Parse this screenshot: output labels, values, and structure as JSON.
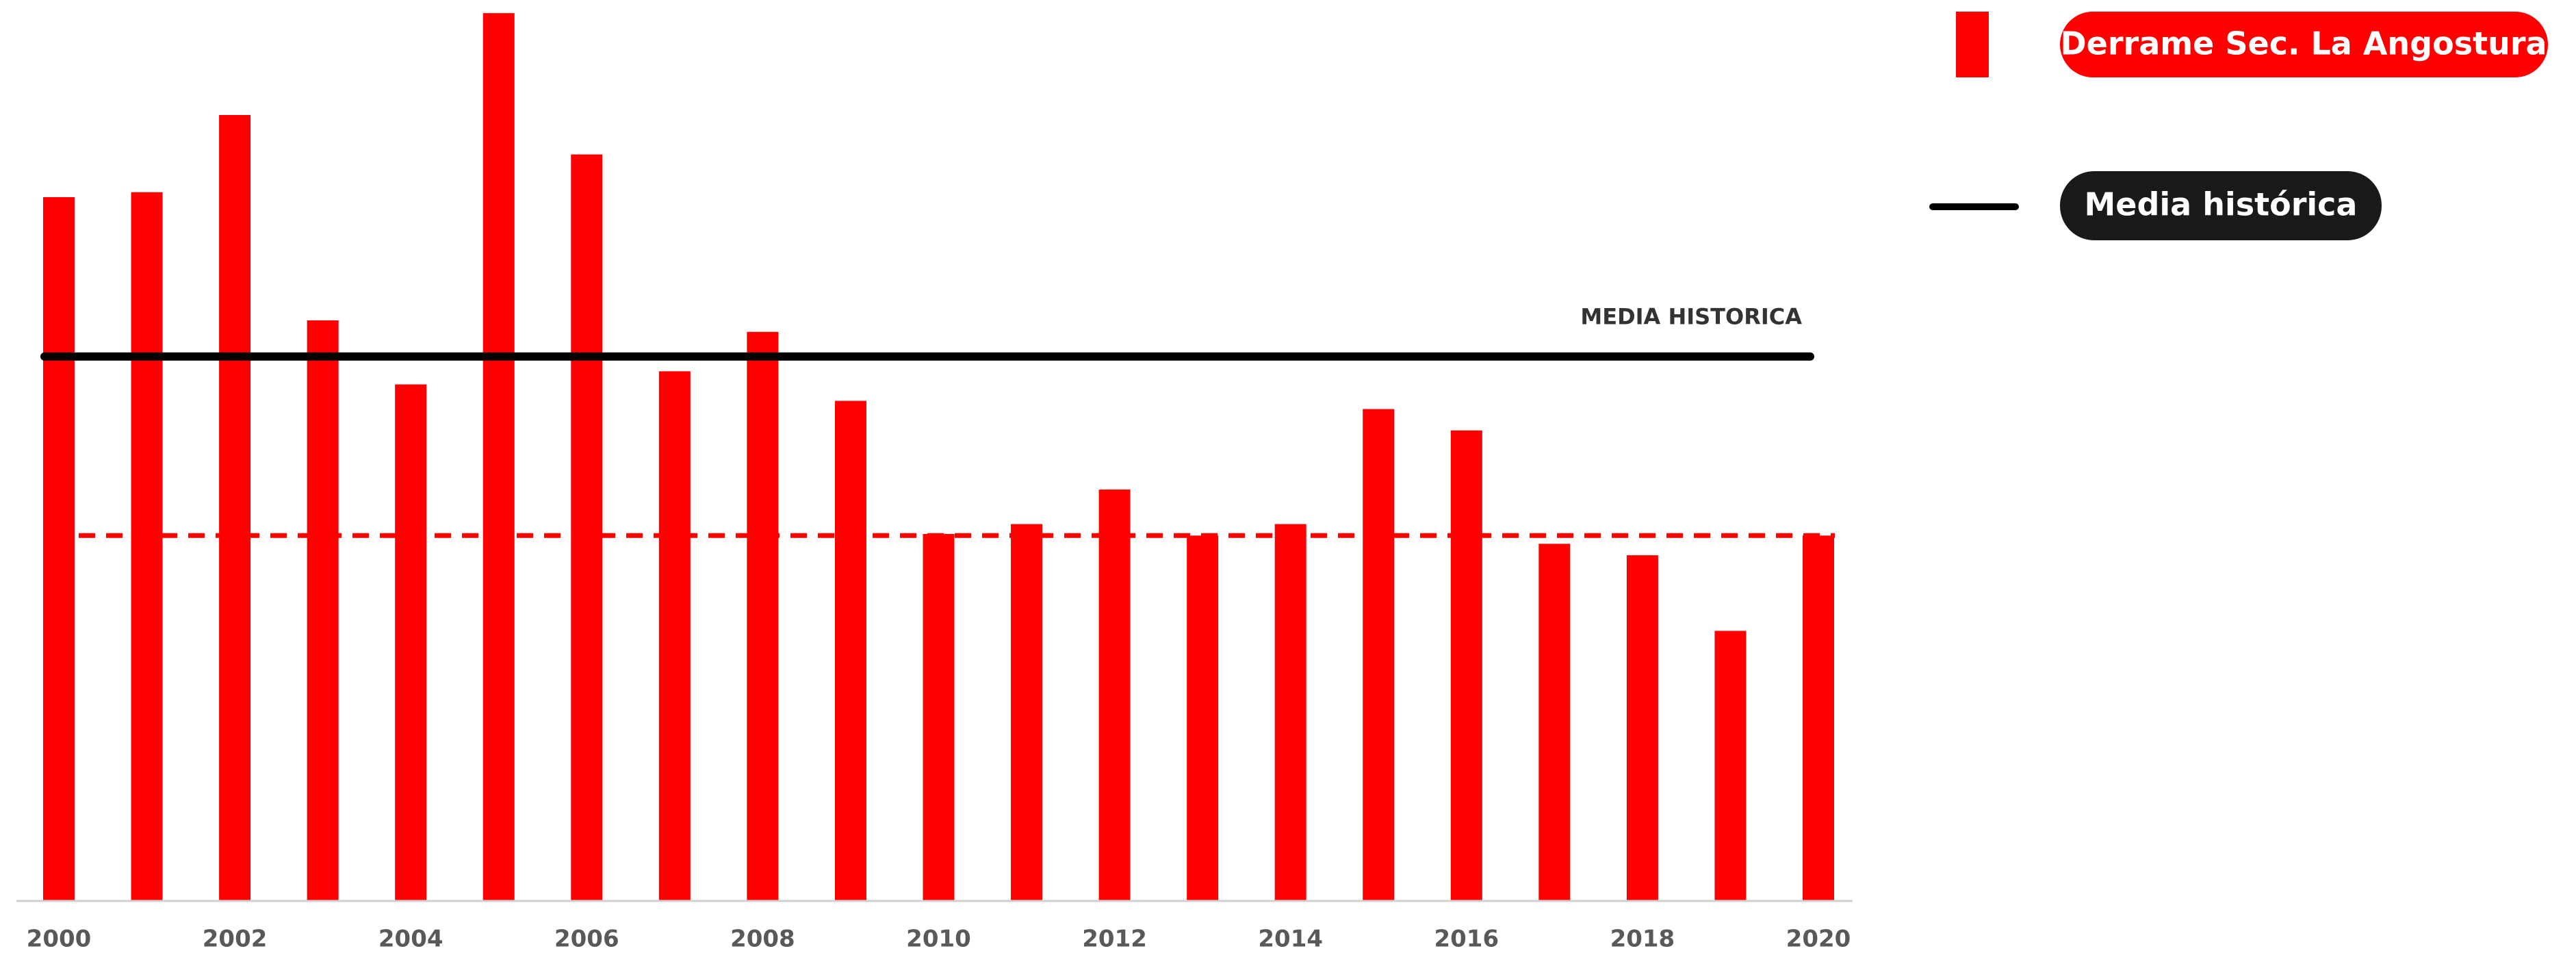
{
  "chart_data": {
    "type": "bar",
    "categories": [
      "2000",
      null,
      "2002",
      null,
      "2004",
      null,
      "2006",
      null,
      "2008",
      null,
      "2010",
      null,
      "2012",
      null,
      "2014",
      null,
      "2016",
      null,
      "2018",
      null,
      "2020"
    ],
    "series": [
      {
        "name": "Derrame Sec. La Angostura",
        "color": "#ff0000",
        "values": [
          428,
          431,
          478,
          353,
          314,
          540,
          454,
          322,
          346,
          304,
          223,
          229,
          250,
          222,
          229,
          299,
          286,
          217,
          210,
          164,
          222
        ]
      }
    ],
    "reference_lines": [
      {
        "name": "Media histórica",
        "label": "MEDIA HISTORICA",
        "value": 331,
        "color": "#000000",
        "style": "solid"
      },
      {
        "value": 222,
        "color": "#ff0000",
        "style": "dashed"
      }
    ],
    "ylim": [
      0,
      548
    ],
    "legend": "top-right"
  }
}
